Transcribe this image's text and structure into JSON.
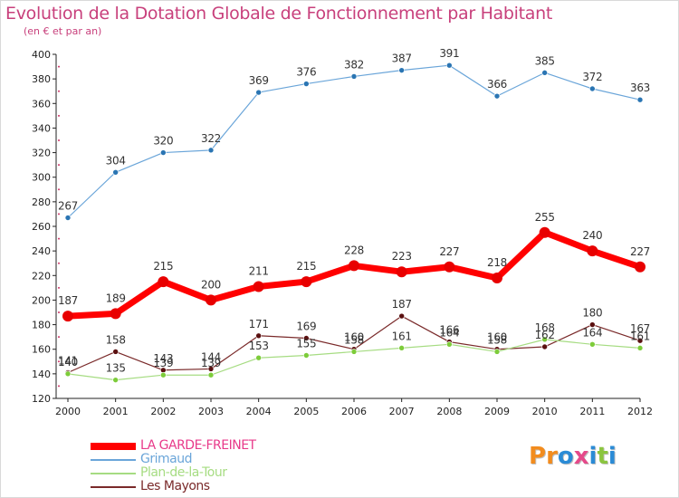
{
  "title": "Evolution de la Dotation Globale de Fonctionnement par Habitant",
  "subtitle": "(en € et par an)",
  "logo": {
    "text": "Proxiti",
    "letters": [
      "P",
      "r",
      "o",
      "x",
      "i",
      "t",
      "i"
    ],
    "colors": [
      "#f28c1e",
      "#f28c1e",
      "#2a8bd6",
      "#e54a8a",
      "#2a8bd6",
      "#8bc53f",
      "#2a8bd6"
    ]
  },
  "colors": {
    "title": "#c8407c",
    "axis": "#222222",
    "grid_dots": "#cc3366"
  },
  "chart_data": {
    "type": "line",
    "title": "Evolution de la Dotation Globale de Fonctionnement par Habitant",
    "subtitle": "(en € et par an)",
    "xlabel": "",
    "ylabel": "",
    "ylim": [
      120,
      400
    ],
    "yticks": [
      120,
      140,
      160,
      180,
      200,
      220,
      240,
      260,
      280,
      300,
      320,
      340,
      360,
      380,
      400
    ],
    "x": [
      "2000",
      "2001",
      "2002",
      "2003",
      "2004",
      "2005",
      "2006",
      "2007",
      "2008",
      "2009",
      "2010",
      "2011",
      "2012"
    ],
    "legend_position": "bottom-left",
    "series": [
      {
        "name": "LA GARDE-FREINET",
        "color": "#ff0000",
        "marker": "#e80000",
        "width": 7,
        "radius": 6,
        "values": [
          187,
          189,
          215,
          200,
          211,
          215,
          228,
          223,
          227,
          218,
          255,
          240,
          227
        ],
        "labels": [
          "187",
          "189",
          "215",
          "200",
          "211",
          "215",
          "228",
          "223",
          "227",
          "218",
          "255",
          "240",
          "227"
        ]
      },
      {
        "name": "Grimaud",
        "color": "#6aa5d9",
        "marker": "#2a75b3",
        "width": 1.2,
        "radius": 3,
        "values": [
          267,
          304,
          320,
          322,
          369,
          376,
          382,
          387,
          391,
          366,
          385,
          372,
          363
        ],
        "labels": [
          "267",
          "304",
          "320",
          "322",
          "369",
          "376",
          "382",
          "387",
          "391",
          "366",
          "385",
          "372",
          "363"
        ]
      },
      {
        "name": "Plan-de-la-Tour",
        "color": "#a6dc82",
        "marker": "#7dcc3a",
        "width": 1.2,
        "radius": 3,
        "values": [
          140,
          135,
          139,
          139,
          153,
          155,
          158,
          161,
          164,
          158,
          168,
          164,
          161
        ],
        "labels": [
          "140",
          "135",
          "139",
          "139",
          "153",
          "155",
          "158",
          "161",
          "164",
          "158",
          "168",
          "164",
          "161"
        ]
      },
      {
        "name": "Les Mayons",
        "color": "#7a2a2a",
        "marker": "#5a1010",
        "width": 1.2,
        "radius": 3,
        "values": [
          141,
          158,
          143,
          144,
          171,
          169,
          160,
          187,
          166,
          160,
          162,
          180,
          167
        ],
        "labels": [
          "141",
          "158",
          "143",
          "144",
          "171",
          "169",
          "160",
          "187",
          "166",
          "160",
          "162",
          "180",
          "167"
        ]
      }
    ]
  }
}
